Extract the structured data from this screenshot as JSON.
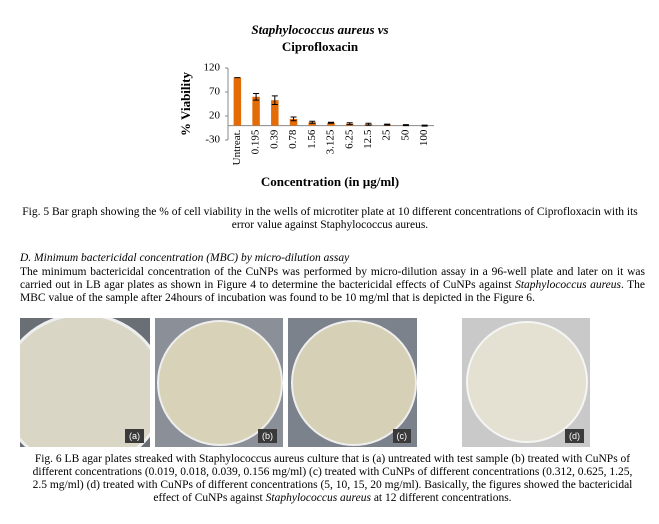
{
  "chart_data": {
    "type": "bar",
    "title": "Staphylococcus aureus vs",
    "subtitle": "Ciprofloxacin",
    "x_label": "Concentration (in µg/ml)",
    "y_label": "% Viability",
    "categories": [
      "Untreat.",
      "0.195",
      "0.39",
      "0.78",
      "1.56",
      "3.125",
      "6.25",
      "12.5",
      "25",
      "50",
      "100"
    ],
    "values": [
      100,
      60,
      53,
      14,
      7,
      6,
      4,
      3,
      2,
      1,
      0
    ],
    "errors": [
      0,
      7,
      9,
      4,
      2,
      1,
      2,
      2,
      1,
      1,
      1
    ],
    "color": "#e36c09",
    "ylim": [
      -30,
      120
    ],
    "yticks": [
      -30,
      20,
      70,
      120
    ],
    "grid": false
  },
  "figure5_caption": "Fig. 5 Bar graph showing the % of cell viability in the wells of microtiter plate at 10 different concentrations of Ciprofloxacin with its error value against Staphylococcus aureus.",
  "section_heading": "D.   Minimum bactericidal concentration (MBC) by micro-dilution assay",
  "paragraph": [
    "The minimum bactericidal concentration of the CuNPs was performed by micro-dilution assay in a 96-well plate and later on it was carried out in LB agar plates as shown in Figure 4 to determine the bactericidal effects of CuNPs against ",
    "Staphylococcus aureus",
    ". The MBC value of the sample after 24hours of incubation was found to be 10 mg/ml that is depicted in the Figure 6."
  ],
  "figure6_panels": [
    "(a)",
    "(b)",
    "(c)",
    "(d)"
  ],
  "figure6_caption": [
    "Fig. 6 LB agar plates streaked with Staphylococcus aureus culture that is (a) untreated with test sample (b) treated with CuNPs of different concentrations (0.019, 0.018, 0.039, 0.156 mg/ml) (c) treated with CuNPs of different concentrations (0.312, 0.625, 1.25, 2.5 mg/ml) (d) treated with CuNPs of different concentrations (5, 10, 15, 20 mg/ml). Basically, the figures showed the bactericidal effect of CuNPs against ",
    "Staphylococcus aureus",
    " at 12 different concentrations."
  ]
}
